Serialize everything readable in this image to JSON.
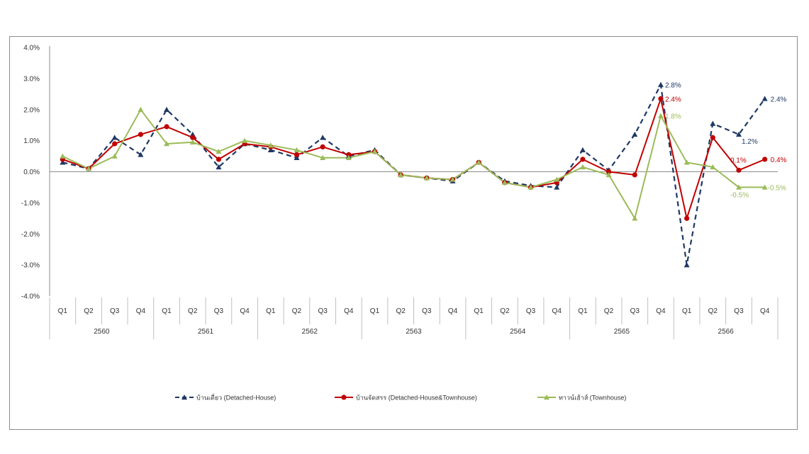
{
  "chart_data": {
    "type": "line",
    "title": "",
    "xlabel": "",
    "ylabel": "",
    "ylim": [
      -4.0,
      4.0
    ],
    "yticks": [
      "4.0%",
      "3.0%",
      "2.0%",
      "1.0%",
      "0.0%",
      "-1.0%",
      "-2.0%",
      "-3.0%",
      "-4.0%"
    ],
    "years": [
      "2560",
      "2561",
      "2562",
      "2563",
      "2564",
      "2565",
      "2566"
    ],
    "quarters": [
      "Q1",
      "Q2",
      "Q3",
      "Q4"
    ],
    "legend_position": "bottom",
    "grid": false,
    "series": [
      {
        "name": "บ้านเดี่ยว (Detached-House)",
        "color": "#1f3864",
        "style": "dashed",
        "marker": "triangle",
        "values": [
          0.3,
          0.1,
          1.1,
          0.55,
          2.0,
          1.2,
          0.15,
          0.9,
          0.7,
          0.45,
          1.1,
          0.5,
          0.7,
          -0.1,
          -0.2,
          -0.3,
          0.3,
          -0.3,
          -0.45,
          -0.5,
          0.7,
          0.05,
          1.2,
          2.8,
          -3.0,
          1.55,
          1.2,
          2.35
        ]
      },
      {
        "name": "บ้านจัดสรร (Detached-House&Townhouse)",
        "color": "#c00000",
        "style": "solid",
        "marker": "circle",
        "values": [
          0.4,
          0.1,
          0.9,
          1.2,
          1.45,
          1.1,
          0.4,
          0.9,
          0.8,
          0.55,
          0.8,
          0.55,
          0.65,
          -0.1,
          -0.2,
          -0.25,
          0.3,
          -0.35,
          -0.5,
          -0.35,
          0.4,
          0.0,
          -0.1,
          2.35,
          -1.5,
          1.1,
          0.05,
          0.4
        ]
      },
      {
        "name": "ทาวน์เฮ้าส์ (Townhouse)",
        "color": "#9bbb59",
        "style": "solid",
        "marker": "triangle",
        "values": [
          0.5,
          0.1,
          0.5,
          2.0,
          0.9,
          0.95,
          0.65,
          1.0,
          0.85,
          0.7,
          0.45,
          0.45,
          0.65,
          -0.1,
          -0.2,
          -0.25,
          0.3,
          -0.35,
          -0.5,
          -0.25,
          0.15,
          -0.1,
          -1.5,
          1.8,
          0.3,
          0.15,
          -0.5,
          -0.5
        ]
      }
    ],
    "annotations": [
      {
        "series": 0,
        "index": 23,
        "text": "2.8%"
      },
      {
        "series": 0,
        "index": 26,
        "text": "1.2%"
      },
      {
        "series": 0,
        "index": 27,
        "text": "2.4%"
      },
      {
        "series": 1,
        "index": 23,
        "text": "2.4%"
      },
      {
        "series": 1,
        "index": 26,
        "text": "0.1%"
      },
      {
        "series": 1,
        "index": 27,
        "text": "0.4%"
      },
      {
        "series": 2,
        "index": 23,
        "text": "1.8%"
      },
      {
        "series": 2,
        "index": 26,
        "text": "-0.5%"
      },
      {
        "series": 2,
        "index": 27,
        "text": "-0.5%"
      }
    ]
  }
}
